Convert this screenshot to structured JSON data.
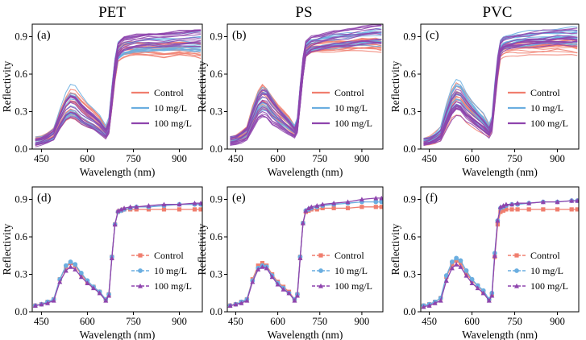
{
  "figure": {
    "column_titles": [
      "PET",
      "PS",
      "PVC"
    ]
  },
  "colors": {
    "control": "#f07e6e",
    "mg10": "#6aaee0",
    "mg100": "#8e44ad"
  },
  "chart_data": [
    {
      "panel": "(a)",
      "plastic": "PET",
      "type": "line",
      "style": "spectra_ensemble",
      "xlabel": "Wavelength (nm)",
      "ylabel": "Reflectivity",
      "xlim": [
        420,
        975
      ],
      "ylim": [
        0,
        1.0
      ],
      "xticks": [
        450,
        600,
        750,
        900
      ],
      "yticks": [
        0.0,
        0.3,
        0.6,
        0.9
      ],
      "legend": [
        "Control",
        "10 mg/L",
        "100 mg/L"
      ],
      "x": [
        430,
        450,
        470,
        490,
        510,
        530,
        545,
        560,
        580,
        600,
        620,
        640,
        660,
        670,
        680,
        690,
        700,
        710,
        720,
        740,
        760,
        800,
        850,
        900,
        950,
        970
      ],
      "series": [
        {
          "name": "Control",
          "values": [
            0.06,
            0.07,
            0.09,
            0.12,
            0.23,
            0.32,
            0.36,
            0.35,
            0.3,
            0.26,
            0.23,
            0.19,
            0.13,
            0.18,
            0.4,
            0.62,
            0.76,
            0.78,
            0.79,
            0.8,
            0.8,
            0.8,
            0.79,
            0.8,
            0.8,
            0.79
          ],
          "spread": [
            0.03,
            0.03,
            0.04,
            0.05,
            0.08,
            0.1,
            0.12,
            0.12,
            0.11,
            0.1,
            0.09,
            0.08,
            0.05,
            0.06,
            0.08,
            0.08,
            0.06,
            0.06,
            0.06,
            0.06,
            0.06,
            0.06,
            0.06,
            0.06,
            0.07,
            0.07
          ]
        },
        {
          "name": "10 mg/L",
          "values": [
            0.06,
            0.07,
            0.09,
            0.12,
            0.24,
            0.34,
            0.38,
            0.37,
            0.31,
            0.27,
            0.24,
            0.2,
            0.14,
            0.19,
            0.42,
            0.64,
            0.78,
            0.8,
            0.82,
            0.83,
            0.84,
            0.85,
            0.85,
            0.86,
            0.86,
            0.86
          ],
          "spread": [
            0.03,
            0.03,
            0.04,
            0.05,
            0.08,
            0.11,
            0.13,
            0.13,
            0.12,
            0.1,
            0.09,
            0.08,
            0.05,
            0.06,
            0.08,
            0.08,
            0.07,
            0.07,
            0.07,
            0.07,
            0.07,
            0.07,
            0.07,
            0.07,
            0.08,
            0.08
          ]
        },
        {
          "name": "100 mg/L",
          "values": [
            0.05,
            0.06,
            0.08,
            0.11,
            0.22,
            0.31,
            0.34,
            0.33,
            0.28,
            0.24,
            0.21,
            0.17,
            0.12,
            0.17,
            0.4,
            0.63,
            0.79,
            0.82,
            0.84,
            0.85,
            0.86,
            0.87,
            0.87,
            0.88,
            0.89,
            0.89
          ],
          "spread": [
            0.03,
            0.03,
            0.04,
            0.05,
            0.07,
            0.09,
            0.1,
            0.1,
            0.09,
            0.08,
            0.07,
            0.06,
            0.04,
            0.05,
            0.08,
            0.08,
            0.06,
            0.06,
            0.06,
            0.06,
            0.06,
            0.06,
            0.06,
            0.07,
            0.07,
            0.07
          ]
        }
      ]
    },
    {
      "panel": "(b)",
      "plastic": "PS",
      "type": "line",
      "style": "spectra_ensemble",
      "xlabel": "Wavelength (nm)",
      "ylabel": "Reflectivity",
      "xlim": [
        420,
        975
      ],
      "ylim": [
        0,
        1.0
      ],
      "xticks": [
        450,
        600,
        750,
        900
      ],
      "yticks": [
        0.0,
        0.3,
        0.6,
        0.9
      ],
      "legend": [
        "Control",
        "10 mg/L",
        "100 mg/L"
      ],
      "x": [
        430,
        450,
        470,
        490,
        510,
        530,
        545,
        560,
        580,
        600,
        620,
        640,
        660,
        670,
        680,
        690,
        700,
        710,
        720,
        740,
        760,
        800,
        850,
        900,
        950,
        970
      ],
      "series": [
        {
          "name": "Control",
          "values": [
            0.07,
            0.08,
            0.1,
            0.13,
            0.26,
            0.36,
            0.4,
            0.38,
            0.32,
            0.27,
            0.23,
            0.19,
            0.14,
            0.19,
            0.42,
            0.63,
            0.77,
            0.79,
            0.8,
            0.81,
            0.81,
            0.82,
            0.82,
            0.83,
            0.83,
            0.82
          ],
          "spread": [
            0.03,
            0.03,
            0.04,
            0.05,
            0.09,
            0.12,
            0.14,
            0.13,
            0.12,
            0.1,
            0.09,
            0.08,
            0.05,
            0.06,
            0.08,
            0.08,
            0.06,
            0.06,
            0.06,
            0.06,
            0.06,
            0.06,
            0.06,
            0.07,
            0.07,
            0.07
          ]
        },
        {
          "name": "10 mg/L",
          "values": [
            0.07,
            0.08,
            0.1,
            0.13,
            0.25,
            0.35,
            0.38,
            0.37,
            0.31,
            0.26,
            0.22,
            0.18,
            0.14,
            0.19,
            0.43,
            0.65,
            0.79,
            0.81,
            0.82,
            0.83,
            0.84,
            0.85,
            0.86,
            0.87,
            0.88,
            0.88
          ],
          "spread": [
            0.03,
            0.03,
            0.04,
            0.05,
            0.08,
            0.11,
            0.12,
            0.12,
            0.11,
            0.09,
            0.08,
            0.07,
            0.05,
            0.06,
            0.08,
            0.08,
            0.06,
            0.06,
            0.06,
            0.06,
            0.07,
            0.07,
            0.07,
            0.07,
            0.08,
            0.08
          ]
        },
        {
          "name": "100 mg/L",
          "values": [
            0.06,
            0.07,
            0.09,
            0.12,
            0.23,
            0.33,
            0.36,
            0.35,
            0.29,
            0.25,
            0.21,
            0.17,
            0.13,
            0.18,
            0.42,
            0.65,
            0.8,
            0.82,
            0.84,
            0.85,
            0.86,
            0.88,
            0.89,
            0.91,
            0.92,
            0.92
          ],
          "spread": [
            0.03,
            0.03,
            0.04,
            0.05,
            0.08,
            0.1,
            0.11,
            0.11,
            0.1,
            0.08,
            0.07,
            0.06,
            0.04,
            0.05,
            0.08,
            0.08,
            0.06,
            0.06,
            0.06,
            0.06,
            0.06,
            0.07,
            0.07,
            0.07,
            0.08,
            0.08
          ]
        }
      ]
    },
    {
      "panel": "(c)",
      "plastic": "PVC",
      "type": "line",
      "style": "spectra_ensemble",
      "xlabel": "Wavelength (nm)",
      "ylabel": "Reflectivity",
      "xlim": [
        420,
        975
      ],
      "ylim": [
        0,
        1.0
      ],
      "xticks": [
        450,
        600,
        750,
        900
      ],
      "yticks": [
        0.0,
        0.3,
        0.6,
        0.9
      ],
      "legend": [
        "Control",
        "10 mg/L",
        "100 mg/L"
      ],
      "x": [
        430,
        450,
        470,
        490,
        510,
        530,
        545,
        560,
        580,
        600,
        620,
        640,
        660,
        670,
        680,
        690,
        700,
        710,
        720,
        740,
        760,
        800,
        850,
        900,
        950,
        970
      ],
      "series": [
        {
          "name": "Control",
          "values": [
            0.06,
            0.07,
            0.09,
            0.12,
            0.25,
            0.36,
            0.4,
            0.39,
            0.33,
            0.28,
            0.24,
            0.2,
            0.14,
            0.19,
            0.42,
            0.63,
            0.77,
            0.79,
            0.8,
            0.81,
            0.81,
            0.81,
            0.81,
            0.82,
            0.82,
            0.81
          ],
          "spread": [
            0.03,
            0.03,
            0.04,
            0.05,
            0.09,
            0.12,
            0.14,
            0.13,
            0.12,
            0.1,
            0.09,
            0.08,
            0.05,
            0.06,
            0.08,
            0.08,
            0.06,
            0.06,
            0.06,
            0.06,
            0.06,
            0.06,
            0.06,
            0.06,
            0.07,
            0.07
          ]
        },
        {
          "name": "10 mg/L",
          "values": [
            0.06,
            0.07,
            0.09,
            0.13,
            0.27,
            0.39,
            0.43,
            0.42,
            0.35,
            0.3,
            0.25,
            0.21,
            0.15,
            0.2,
            0.45,
            0.67,
            0.81,
            0.84,
            0.85,
            0.86,
            0.87,
            0.88,
            0.89,
            0.9,
            0.9,
            0.9
          ],
          "spread": [
            0.03,
            0.03,
            0.04,
            0.05,
            0.09,
            0.12,
            0.14,
            0.14,
            0.12,
            0.1,
            0.09,
            0.08,
            0.05,
            0.06,
            0.08,
            0.08,
            0.07,
            0.07,
            0.07,
            0.07,
            0.07,
            0.07,
            0.07,
            0.07,
            0.08,
            0.08
          ]
        },
        {
          "name": "100 mg/L",
          "values": [
            0.05,
            0.06,
            0.08,
            0.11,
            0.23,
            0.33,
            0.37,
            0.36,
            0.3,
            0.26,
            0.22,
            0.18,
            0.13,
            0.18,
            0.42,
            0.65,
            0.8,
            0.83,
            0.84,
            0.85,
            0.86,
            0.87,
            0.88,
            0.89,
            0.89,
            0.89
          ],
          "spread": [
            0.03,
            0.03,
            0.04,
            0.05,
            0.08,
            0.1,
            0.11,
            0.11,
            0.1,
            0.08,
            0.07,
            0.06,
            0.04,
            0.05,
            0.08,
            0.08,
            0.06,
            0.06,
            0.06,
            0.06,
            0.06,
            0.06,
            0.07,
            0.07,
            0.07,
            0.07
          ]
        }
      ]
    },
    {
      "panel": "(d)",
      "plastic": "PET",
      "type": "line",
      "style": "mean_markers",
      "xlabel": "Wavelength (nm)",
      "ylabel": "Reflectivity",
      "xlim": [
        420,
        975
      ],
      "ylim": [
        0,
        1.0
      ],
      "xticks": [
        450,
        600,
        750,
        900
      ],
      "yticks": [
        0.0,
        0.3,
        0.6,
        0.9
      ],
      "legend": [
        "Control",
        "10 mg/L",
        "100 mg/L"
      ],
      "x": [
        430,
        450,
        470,
        490,
        510,
        530,
        545,
        560,
        580,
        600,
        620,
        640,
        660,
        670,
        680,
        690,
        700,
        710,
        720,
        740,
        760,
        800,
        850,
        900,
        950,
        970
      ],
      "series": [
        {
          "name": "Control",
          "values": [
            0.05,
            0.06,
            0.08,
            0.1,
            0.26,
            0.36,
            0.39,
            0.37,
            0.3,
            0.24,
            0.2,
            0.16,
            0.1,
            0.14,
            0.44,
            0.7,
            0.8,
            0.81,
            0.82,
            0.82,
            0.82,
            0.82,
            0.82,
            0.82,
            0.82,
            0.82
          ]
        },
        {
          "name": "10 mg/L",
          "values": [
            0.05,
            0.06,
            0.08,
            0.1,
            0.26,
            0.37,
            0.4,
            0.38,
            0.31,
            0.25,
            0.2,
            0.16,
            0.1,
            0.14,
            0.44,
            0.7,
            0.8,
            0.81,
            0.82,
            0.83,
            0.84,
            0.84,
            0.85,
            0.86,
            0.86,
            0.86
          ]
        },
        {
          "name": "100 mg/L",
          "values": [
            0.05,
            0.06,
            0.07,
            0.09,
            0.24,
            0.33,
            0.36,
            0.34,
            0.28,
            0.23,
            0.19,
            0.15,
            0.09,
            0.13,
            0.43,
            0.7,
            0.81,
            0.82,
            0.83,
            0.84,
            0.84,
            0.85,
            0.86,
            0.86,
            0.87,
            0.87
          ]
        }
      ]
    },
    {
      "panel": "(e)",
      "plastic": "PS",
      "type": "line",
      "style": "mean_markers",
      "xlabel": "Wavelength (nm)",
      "ylabel": "Reflectivity",
      "xlim": [
        420,
        975
      ],
      "ylim": [
        0,
        1.0
      ],
      "xticks": [
        450,
        600,
        750,
        900
      ],
      "yticks": [
        0.0,
        0.3,
        0.6,
        0.9
      ],
      "legend": [
        "Control",
        "10 mg/L",
        "100 mg/L"
      ],
      "x": [
        430,
        450,
        470,
        490,
        510,
        530,
        545,
        560,
        580,
        600,
        620,
        640,
        660,
        670,
        680,
        690,
        700,
        710,
        720,
        740,
        760,
        800,
        850,
        900,
        950,
        970
      ],
      "series": [
        {
          "name": "Control",
          "values": [
            0.05,
            0.06,
            0.08,
            0.1,
            0.26,
            0.37,
            0.39,
            0.37,
            0.3,
            0.24,
            0.2,
            0.16,
            0.1,
            0.14,
            0.44,
            0.71,
            0.8,
            0.81,
            0.82,
            0.82,
            0.83,
            0.83,
            0.83,
            0.84,
            0.84,
            0.84
          ]
        },
        {
          "name": "10 mg/L",
          "values": [
            0.05,
            0.06,
            0.08,
            0.1,
            0.25,
            0.35,
            0.37,
            0.36,
            0.29,
            0.23,
            0.19,
            0.15,
            0.1,
            0.14,
            0.44,
            0.71,
            0.81,
            0.82,
            0.83,
            0.84,
            0.85,
            0.86,
            0.87,
            0.88,
            0.88,
            0.88
          ]
        },
        {
          "name": "100 mg/L",
          "values": [
            0.05,
            0.06,
            0.07,
            0.09,
            0.24,
            0.34,
            0.36,
            0.35,
            0.28,
            0.22,
            0.18,
            0.15,
            0.09,
            0.13,
            0.43,
            0.71,
            0.81,
            0.83,
            0.84,
            0.85,
            0.86,
            0.87,
            0.88,
            0.9,
            0.91,
            0.91
          ]
        }
      ]
    },
    {
      "panel": "(f)",
      "plastic": "PVC",
      "type": "line",
      "style": "mean_markers",
      "xlabel": "Wavelength (nm)",
      "ylabel": "Reflectivity",
      "xlim": [
        420,
        975
      ],
      "ylim": [
        0,
        1.0
      ],
      "xticks": [
        450,
        600,
        750,
        900
      ],
      "yticks": [
        0.0,
        0.3,
        0.6,
        0.9
      ],
      "legend": [
        "Control",
        "10 mg/L",
        "100 mg/L"
      ],
      "x": [
        430,
        450,
        470,
        490,
        510,
        530,
        545,
        560,
        580,
        600,
        620,
        640,
        660,
        670,
        680,
        690,
        700,
        710,
        720,
        740,
        760,
        800,
        850,
        900,
        950,
        970
      ],
      "series": [
        {
          "name": "Control",
          "values": [
            0.05,
            0.06,
            0.08,
            0.11,
            0.28,
            0.38,
            0.41,
            0.39,
            0.31,
            0.25,
            0.21,
            0.16,
            0.1,
            0.14,
            0.44,
            0.7,
            0.8,
            0.81,
            0.82,
            0.82,
            0.82,
            0.82,
            0.82,
            0.82,
            0.82,
            0.82
          ]
        },
        {
          "name": "10 mg/L",
          "values": [
            0.05,
            0.06,
            0.08,
            0.11,
            0.29,
            0.4,
            0.43,
            0.41,
            0.33,
            0.26,
            0.21,
            0.17,
            0.1,
            0.15,
            0.47,
            0.73,
            0.83,
            0.84,
            0.85,
            0.86,
            0.86,
            0.87,
            0.88,
            0.88,
            0.89,
            0.89
          ]
        },
        {
          "name": "100 mg/L",
          "values": [
            0.04,
            0.05,
            0.07,
            0.09,
            0.25,
            0.35,
            0.38,
            0.36,
            0.29,
            0.23,
            0.19,
            0.15,
            0.09,
            0.13,
            0.45,
            0.73,
            0.84,
            0.85,
            0.86,
            0.86,
            0.87,
            0.87,
            0.88,
            0.88,
            0.89,
            0.89
          ]
        }
      ]
    }
  ]
}
